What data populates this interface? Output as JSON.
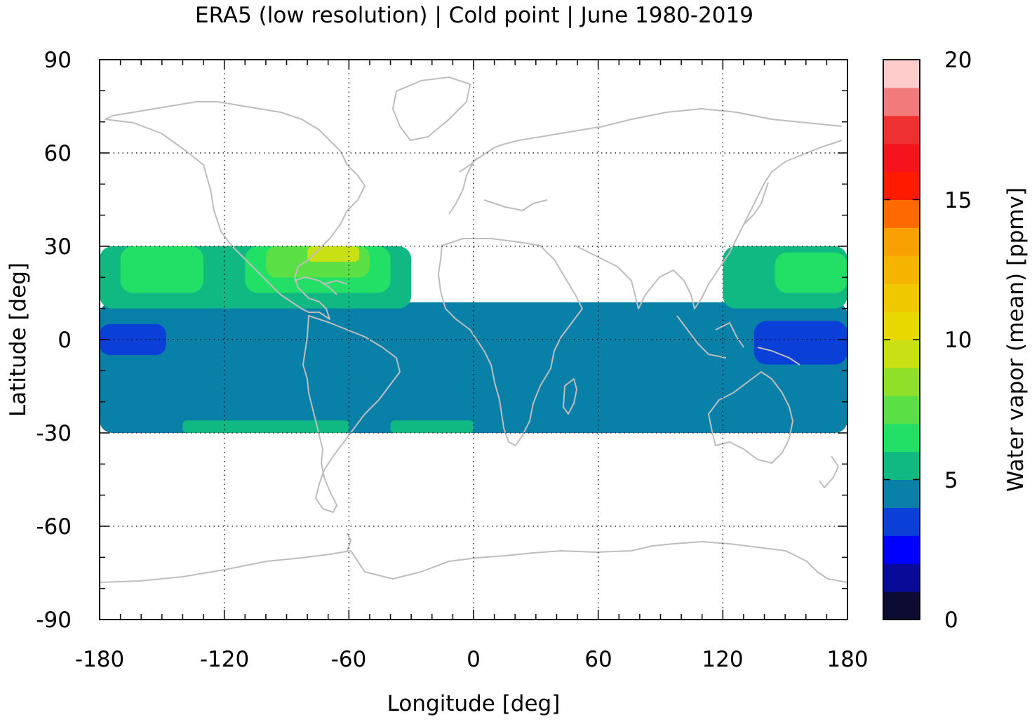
{
  "title": "ERA5 (low resolution) | Cold point | June 1980-2019",
  "map": {
    "xlabel": "Longitude [deg]",
    "ylabel": "Latitude [deg]",
    "xlim": [
      -180,
      180
    ],
    "ylim": [
      -90,
      90
    ],
    "xticks": [
      "-180",
      "-120",
      "-60",
      "0",
      "60",
      "120",
      "180"
    ],
    "yticks": [
      "90",
      "60",
      "30",
      "0",
      "-30",
      "-60",
      "-90"
    ],
    "grid": "dotted",
    "data_lat_range": [
      -30,
      30
    ],
    "coastline_color": "#bdbdbd"
  },
  "colorbar": {
    "label": "Water vapor (mean) [ppmv]",
    "ticks": [
      "0",
      "5",
      "10",
      "15",
      "20"
    ],
    "range": [
      0,
      20
    ],
    "colors": [
      "#0b0b33",
      "#0a0a99",
      "#0000ff",
      "#0a3fd8",
      "#0880a8",
      "#10b882",
      "#22e066",
      "#5ae044",
      "#90e02a",
      "#c8e014",
      "#e8d800",
      "#f0c800",
      "#f5b400",
      "#f8a000",
      "#ff6a00",
      "#ff1a00",
      "#f5141e",
      "#ee3030",
      "#f27a7a",
      "#ffcccc"
    ]
  },
  "chart_data": {
    "type": "heatmap",
    "title": "ERA5 (low resolution) | Cold point | June 1980-2019",
    "xlabel": "Longitude [deg]",
    "ylabel": "Latitude [deg]",
    "xlim": [
      -180,
      180
    ],
    "ylim": [
      -90,
      90
    ],
    "value_range": [
      0,
      20
    ],
    "unit": "ppmv",
    "background_value": 4.5,
    "regions": [
      {
        "lon": [
          -180,
          180
        ],
        "lat": [
          -30,
          12
        ],
        "value": 4.5
      },
      {
        "lon": [
          -180,
          -30
        ],
        "lat": [
          10,
          30
        ],
        "value": 5.5
      },
      {
        "lon": [
          -170,
          -130
        ],
        "lat": [
          15,
          30
        ],
        "value": 6.5
      },
      {
        "lon": [
          -110,
          -40
        ],
        "lat": [
          15,
          30
        ],
        "value": 6.5
      },
      {
        "lon": [
          -100,
          -50
        ],
        "lat": [
          20,
          30
        ],
        "value": 7.5
      },
      {
        "lon": [
          -80,
          -55
        ],
        "lat": [
          25,
          30
        ],
        "value": 9.5
      },
      {
        "lon": [
          120,
          180
        ],
        "lat": [
          10,
          30
        ],
        "value": 5.5
      },
      {
        "lon": [
          145,
          180
        ],
        "lat": [
          15,
          28
        ],
        "value": 6.5
      },
      {
        "lon": [
          -180,
          -148
        ],
        "lat": [
          -5,
          5
        ],
        "value": 3.5
      },
      {
        "lon": [
          135,
          180
        ],
        "lat": [
          -8,
          6
        ],
        "value": 3.5
      },
      {
        "lon": [
          -140,
          -60
        ],
        "lat": [
          -30,
          -26
        ],
        "value": 5.5
      },
      {
        "lon": [
          -40,
          0
        ],
        "lat": [
          -30,
          -26
        ],
        "value": 5.5
      }
    ]
  }
}
